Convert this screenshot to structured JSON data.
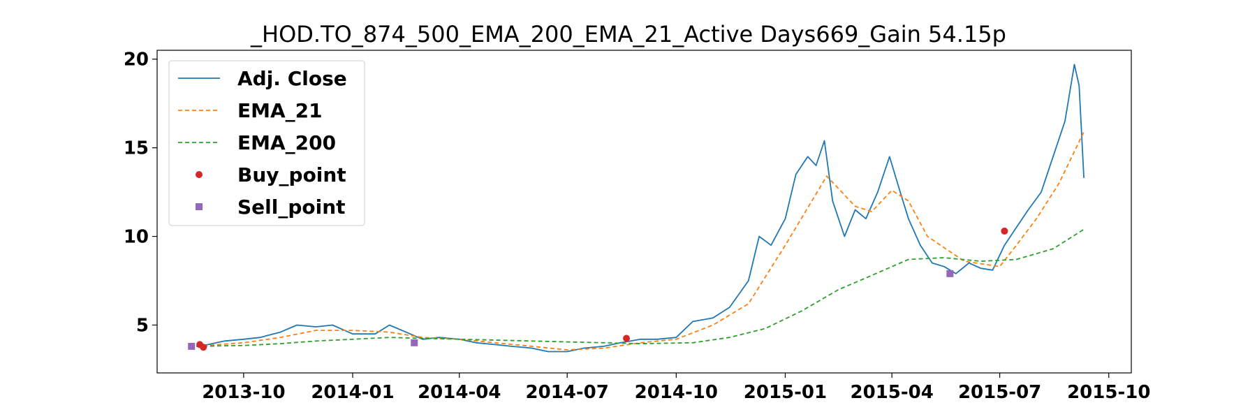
{
  "chart_data": {
    "type": "line",
    "title": "_HOD.TO_874_500_EMA_200_EMA_21_Active Days669_Gain  54.15p",
    "xlabel": "",
    "ylabel": "",
    "xlim": [
      "2013-07-20",
      "2015-10-20"
    ],
    "ylim": [
      2.3,
      20.5
    ],
    "grid": false,
    "legend_position": "upper-left",
    "x_ticks": [
      "2013-10",
      "2014-01",
      "2014-04",
      "2014-07",
      "2014-10",
      "2015-01",
      "2015-04",
      "2015-07",
      "2015-10"
    ],
    "y_ticks": [
      5,
      10,
      15,
      20
    ],
    "series": [
      {
        "name": "Adj. Close",
        "style": "solid",
        "color": "#1f77b4",
        "points": [
          [
            "2013-08-22",
            3.8
          ],
          [
            "2013-09-01",
            3.9
          ],
          [
            "2013-09-15",
            4.1
          ],
          [
            "2013-10-01",
            4.2
          ],
          [
            "2013-10-15",
            4.3
          ],
          [
            "2013-11-01",
            4.6
          ],
          [
            "2013-11-15",
            5.0
          ],
          [
            "2013-12-01",
            4.9
          ],
          [
            "2013-12-15",
            5.0
          ],
          [
            "2014-01-01",
            4.5
          ],
          [
            "2014-01-20",
            4.5
          ],
          [
            "2014-02-01",
            5.0
          ],
          [
            "2014-02-15",
            4.6
          ],
          [
            "2014-03-01",
            4.2
          ],
          [
            "2014-03-15",
            4.3
          ],
          [
            "2014-04-01",
            4.2
          ],
          [
            "2014-04-15",
            4.0
          ],
          [
            "2014-05-01",
            3.9
          ],
          [
            "2014-05-15",
            3.8
          ],
          [
            "2014-06-01",
            3.7
          ],
          [
            "2014-06-15",
            3.5
          ],
          [
            "2014-07-01",
            3.5
          ],
          [
            "2014-07-15",
            3.7
          ],
          [
            "2014-08-01",
            3.8
          ],
          [
            "2014-08-15",
            4.0
          ],
          [
            "2014-09-01",
            4.2
          ],
          [
            "2014-09-15",
            4.2
          ],
          [
            "2014-10-01",
            4.3
          ],
          [
            "2014-10-15",
            5.2
          ],
          [
            "2014-11-01",
            5.4
          ],
          [
            "2014-11-15",
            6.0
          ],
          [
            "2014-12-01",
            7.5
          ],
          [
            "2014-12-10",
            10.0
          ],
          [
            "2014-12-20",
            9.5
          ],
          [
            "2015-01-01",
            11.0
          ],
          [
            "2015-01-10",
            13.5
          ],
          [
            "2015-01-20",
            14.5
          ],
          [
            "2015-01-27",
            14.0
          ],
          [
            "2015-02-03",
            15.4
          ],
          [
            "2015-02-10",
            12.0
          ],
          [
            "2015-02-20",
            10.0
          ],
          [
            "2015-03-01",
            11.5
          ],
          [
            "2015-03-10",
            11.0
          ],
          [
            "2015-03-20",
            12.5
          ],
          [
            "2015-03-30",
            14.5
          ],
          [
            "2015-04-08",
            12.5
          ],
          [
            "2015-04-15",
            11.0
          ],
          [
            "2015-04-25",
            9.5
          ],
          [
            "2015-05-05",
            8.5
          ],
          [
            "2015-05-15",
            8.3
          ],
          [
            "2015-05-25",
            7.9
          ],
          [
            "2015-06-05",
            8.5
          ],
          [
            "2015-06-15",
            8.2
          ],
          [
            "2015-06-25",
            8.1
          ],
          [
            "2015-07-05",
            9.5
          ],
          [
            "2015-07-15",
            10.5
          ],
          [
            "2015-07-25",
            11.5
          ],
          [
            "2015-08-05",
            12.5
          ],
          [
            "2015-08-15",
            14.5
          ],
          [
            "2015-08-25",
            16.5
          ],
          [
            "2015-09-02",
            19.7
          ],
          [
            "2015-09-06",
            18.5
          ],
          [
            "2015-09-10",
            13.3
          ]
        ]
      },
      {
        "name": "EMA_21",
        "style": "dashed",
        "color": "#ff7f0e",
        "points": [
          [
            "2013-08-22",
            3.8
          ],
          [
            "2013-10-01",
            4.0
          ],
          [
            "2013-11-01",
            4.3
          ],
          [
            "2013-12-01",
            4.7
          ],
          [
            "2014-01-01",
            4.7
          ],
          [
            "2014-02-01",
            4.6
          ],
          [
            "2014-03-01",
            4.3
          ],
          [
            "2014-04-01",
            4.2
          ],
          [
            "2014-05-01",
            4.0
          ],
          [
            "2014-06-01",
            3.8
          ],
          [
            "2014-07-01",
            3.6
          ],
          [
            "2014-08-01",
            3.7
          ],
          [
            "2014-09-01",
            4.0
          ],
          [
            "2014-10-01",
            4.2
          ],
          [
            "2014-11-01",
            5.0
          ],
          [
            "2014-12-01",
            6.2
          ],
          [
            "2015-01-01",
            9.5
          ],
          [
            "2015-02-05",
            13.4
          ],
          [
            "2015-03-01",
            11.7
          ],
          [
            "2015-03-15",
            11.4
          ],
          [
            "2015-04-01",
            12.6
          ],
          [
            "2015-04-15",
            12.0
          ],
          [
            "2015-05-01",
            10.0
          ],
          [
            "2015-06-01",
            8.6
          ],
          [
            "2015-07-01",
            8.3
          ],
          [
            "2015-07-15",
            9.5
          ],
          [
            "2015-08-01",
            11.0
          ],
          [
            "2015-08-20",
            13.0
          ],
          [
            "2015-09-10",
            15.9
          ]
        ]
      },
      {
        "name": "EMA_200",
        "style": "dashed",
        "color": "#2ca02c",
        "points": [
          [
            "2013-08-22",
            3.8
          ],
          [
            "2013-10-01",
            3.85
          ],
          [
            "2013-11-01",
            3.95
          ],
          [
            "2013-12-01",
            4.1
          ],
          [
            "2014-01-01",
            4.2
          ],
          [
            "2014-02-01",
            4.3
          ],
          [
            "2014-03-01",
            4.25
          ],
          [
            "2014-05-01",
            4.15
          ],
          [
            "2014-07-01",
            4.05
          ],
          [
            "2014-09-01",
            3.95
          ],
          [
            "2014-10-15",
            4.0
          ],
          [
            "2014-11-15",
            4.3
          ],
          [
            "2014-12-15",
            4.8
          ],
          [
            "2015-01-15",
            5.8
          ],
          [
            "2015-02-15",
            7.0
          ],
          [
            "2015-03-15",
            7.8
          ],
          [
            "2015-04-15",
            8.7
          ],
          [
            "2015-05-15",
            8.8
          ],
          [
            "2015-06-15",
            8.6
          ],
          [
            "2015-07-15",
            8.7
          ],
          [
            "2015-08-15",
            9.3
          ],
          [
            "2015-09-10",
            10.4
          ]
        ]
      }
    ],
    "markers": [
      {
        "name": "Buy_point",
        "shape": "circle",
        "color": "#d62728",
        "points": [
          [
            "2013-08-25",
            3.9
          ],
          [
            "2013-08-28",
            3.75
          ],
          [
            "2014-08-20",
            4.25
          ],
          [
            "2015-07-05",
            10.3
          ]
        ]
      },
      {
        "name": "Sell_point",
        "shape": "square",
        "color": "#9467bd",
        "points": [
          [
            "2013-08-18",
            3.8
          ],
          [
            "2014-02-22",
            4.0
          ],
          [
            "2015-05-20",
            7.9
          ]
        ]
      }
    ]
  }
}
